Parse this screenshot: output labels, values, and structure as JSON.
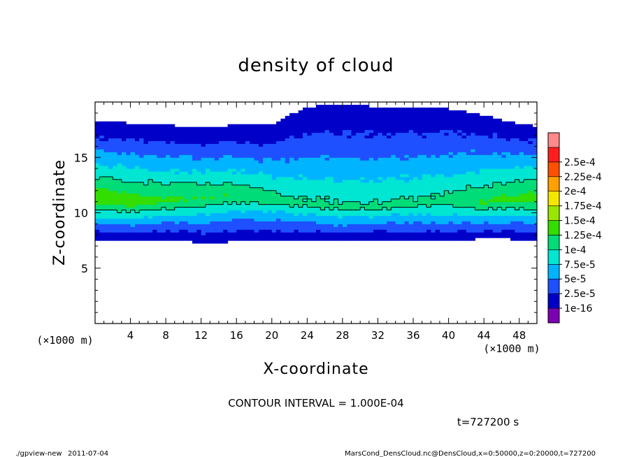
{
  "chart_data": {
    "type": "heatmap",
    "title": "density of cloud",
    "xlabel": "X-coordinate",
    "ylabel": "Z-coordinate",
    "x_unit_left": "(×1000 m)",
    "x_unit_right": "(×1000 m)",
    "xlim": [
      0,
      50
    ],
    "ylim": [
      0,
      20
    ],
    "x_ticks": [
      4,
      8,
      12,
      16,
      20,
      24,
      28,
      32,
      36,
      40,
      44,
      48
    ],
    "x_tick_labels": [
      "4",
      "8",
      "12",
      "16",
      "20",
      "24",
      "28",
      "32",
      "36",
      "40",
      "44",
      "48"
    ],
    "y_ticks": [
      5,
      10,
      15
    ],
    "y_tick_labels": [
      "5",
      "10",
      "15"
    ],
    "contour_interval_text": "CONTOUR INTERVAL = 1.000E-04",
    "time_text": "t=727200 s",
    "colorbar": {
      "levels": [
        1e-16,
        2.5e-05,
        5e-05,
        7.5e-05,
        0.0001,
        0.000125,
        0.00015,
        0.000175,
        0.0002,
        0.000225,
        0.00025
      ],
      "labels": [
        "1e-16",
        "2.5e-5",
        "5e-5",
        "7.5e-5",
        "1e-4",
        "1.25e-4",
        "1.5e-4",
        "1.75e-4",
        "2e-4",
        "2.25e-4",
        "2.5e-4"
      ],
      "colors": [
        "#7a00b0",
        "#0000c8",
        "#1e50ff",
        "#00b4ff",
        "#00e6d2",
        "#00dc78",
        "#33dd00",
        "#99e600",
        "#f5e600",
        "#ffa000",
        "#ff5000",
        "#ff1e1e",
        "#ff8a8a"
      ]
    },
    "cloud_profile": {
      "x": [
        0,
        4,
        8,
        12,
        16,
        20,
        24,
        28,
        32,
        36,
        40,
        44,
        48,
        50
      ],
      "cloud_top_z": [
        18.3,
        18.1,
        17.9,
        17.8,
        17.9,
        18.0,
        19.6,
        19.7,
        19.6,
        19.6,
        19.4,
        18.8,
        18.0,
        17.8
      ],
      "cloud_base_z": [
        7.6,
        7.5,
        7.6,
        7.3,
        7.4,
        7.5,
        7.4,
        7.4,
        7.5,
        7.4,
        7.4,
        7.7,
        7.6,
        7.5
      ],
      "core_center_z": [
        11.3,
        11.0,
        11.1,
        11.4,
        11.6,
        11.2,
        10.8,
        10.4,
        10.5,
        10.8,
        11.0,
        10.9,
        11.3,
        11.2
      ],
      "peak_density": [
        0.000145,
        0.00014,
        0.00013,
        0.000125,
        0.00012,
        0.00011,
        0.000105,
        0.000105,
        0.000105,
        0.000105,
        0.00011,
        0.000125,
        0.000135,
        0.00014
      ],
      "contour_levels": [
        0.0001
      ]
    }
  },
  "footer": {
    "program": "./gpview-new",
    "date": "2011-07-04",
    "source": "MarsCond_DensCloud.nc@DensCloud,x=0:50000,z=0:20000,t=727200"
  }
}
